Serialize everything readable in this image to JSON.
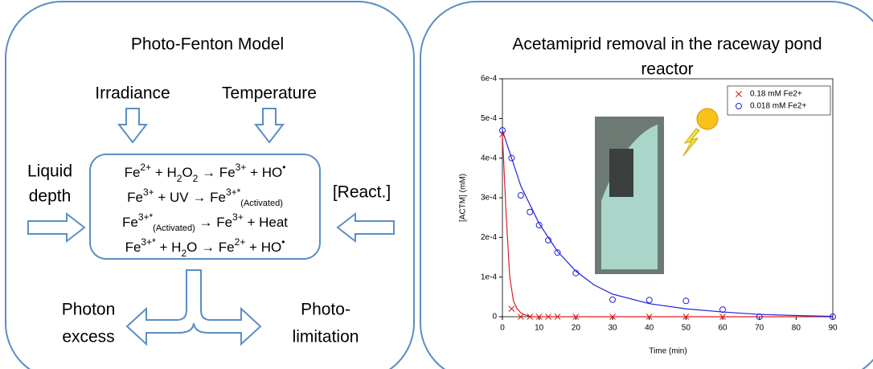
{
  "left": {
    "title": "Photo-Fenton Model",
    "inputs_top": [
      "Irradiance",
      "Temperature"
    ],
    "input_left": [
      "Liquid",
      "depth"
    ],
    "input_right": "[React.]",
    "outputs": {
      "left": [
        "Photon",
        "excess"
      ],
      "right": [
        "Photo-",
        "limitation"
      ]
    },
    "equations": [
      [
        {
          "text": "Fe"
        },
        {
          "sup": "2+"
        },
        {
          "text": " + H"
        },
        {
          "sub": "2"
        },
        {
          "text": "O"
        },
        {
          "sub": "2"
        },
        {
          "text": " → Fe"
        },
        {
          "sup": "3+"
        },
        {
          "text": " + HO"
        },
        {
          "sup": "•"
        }
      ],
      [
        {
          "text": "Fe"
        },
        {
          "sup": "3+"
        },
        {
          "text": " + UV → Fe"
        },
        {
          "sup": "3+*"
        },
        {
          "sub": "(Activated)"
        }
      ],
      [
        {
          "text": "Fe"
        },
        {
          "sup": "3+*"
        },
        {
          "sub": "(Activated)"
        },
        {
          "text": " → Fe"
        },
        {
          "sup": "3+"
        },
        {
          "text": " + Heat"
        }
      ],
      [
        {
          "text": "Fe"
        },
        {
          "sup": "3+*"
        },
        {
          "text": " + H"
        },
        {
          "sub": "2"
        },
        {
          "text": "O → Fe"
        },
        {
          "sup": "2+"
        },
        {
          "text": " + HO"
        },
        {
          "sup": "•"
        }
      ]
    ]
  },
  "chart_data": {
    "type": "scatter",
    "title": [
      "Acetamiprid removal in the raceway pond",
      "reactor"
    ],
    "x_label": "Time (min)",
    "y_label": "[ACTM] (mM)",
    "xlim": [
      0,
      90
    ],
    "xticks": [
      0,
      10,
      20,
      30,
      40,
      50,
      60,
      70,
      80,
      90
    ],
    "ylim": [
      0,
      0.0006
    ],
    "yticks": [
      0,
      {
        "value": 0.0001,
        "label": "1e-4"
      },
      {
        "value": 0.0002,
        "label": "2e-4"
      },
      {
        "value": 0.0003,
        "label": "3e-4"
      },
      {
        "value": 0.0004,
        "label": "4e-4"
      },
      {
        "value": 0.0005,
        "label": "5e-4"
      },
      {
        "value": 0.0006,
        "label": "6e-4"
      }
    ],
    "legend": "upper right",
    "series": [
      {
        "name": "0.18 mM Fe2+",
        "color": "#e02020",
        "marker": "x",
        "x": [
          0,
          2.5,
          5,
          7.5,
          10,
          12.5,
          15,
          20,
          30,
          40,
          50,
          60
        ],
        "values": [
          0.00046,
          2e-05,
          0,
          0,
          0,
          0,
          0,
          0,
          0,
          0,
          0,
          0
        ]
      },
      {
        "name": "0.018 mM Fe2+",
        "color": "#2020e0",
        "marker": "o",
        "x": [
          0,
          2.5,
          5,
          7.5,
          10,
          12.5,
          15,
          20,
          30,
          40,
          50,
          60,
          70,
          90
        ],
        "values": [
          0.00047,
          0.0004,
          0.000306,
          0.000264,
          0.000231,
          0.000193,
          0.000162,
          0.00011,
          4.3e-05,
          4.2e-05,
          4e-05,
          1.8e-05,
          0,
          0
        ]
      }
    ],
    "fits": [
      {
        "color": "#e02020",
        "x": [
          0,
          1,
          2,
          3,
          4,
          5,
          6,
          8,
          10,
          90
        ],
        "values": [
          0.00046,
          0.00026,
          0.0001,
          4e-05,
          2e-05,
          1e-05,
          5e-06,
          0,
          0,
          0
        ]
      },
      {
        "color": "#2020e0",
        "x": [
          0,
          5,
          10,
          15,
          20,
          25,
          30,
          40,
          50,
          60,
          70,
          80,
          90
        ],
        "values": [
          0.00047,
          0.00033,
          0.000235,
          0.000165,
          0.000115,
          8e-05,
          5.7e-05,
          3.3e-05,
          2e-05,
          1.2e-05,
          6e-06,
          3e-06,
          1e-06
        ]
      }
    ]
  }
}
